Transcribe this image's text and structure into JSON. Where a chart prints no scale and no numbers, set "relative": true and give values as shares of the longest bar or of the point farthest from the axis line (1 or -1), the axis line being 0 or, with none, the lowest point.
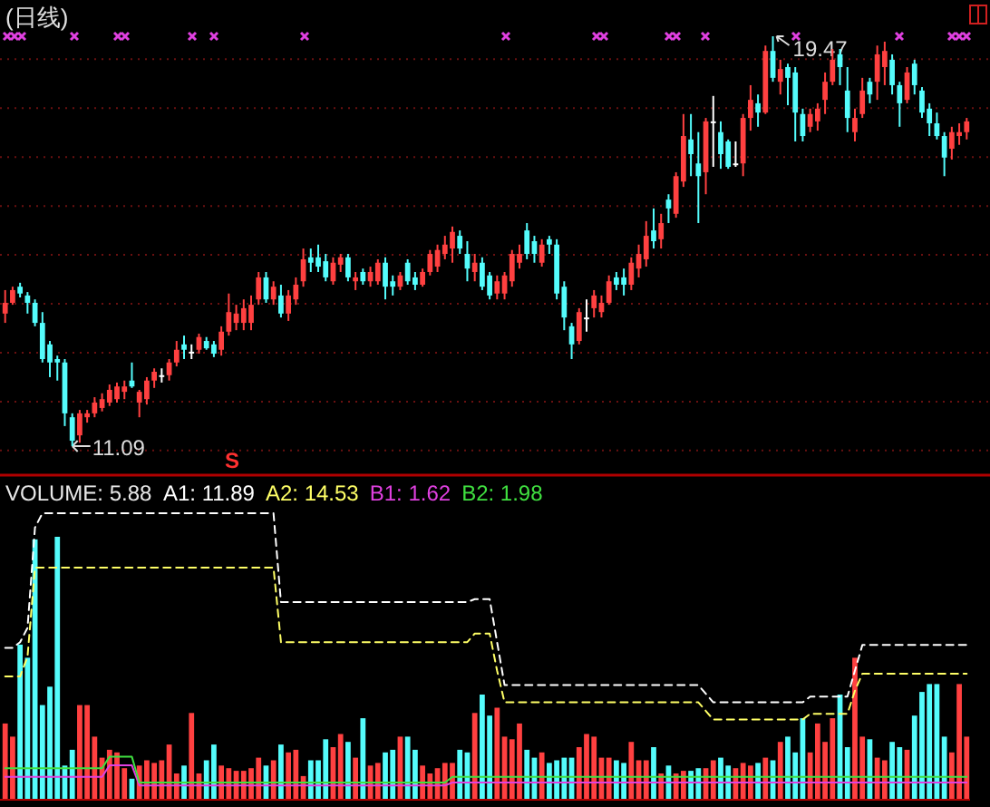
{
  "chart_data": [
    {
      "type": "candlestick",
      "title": "(日线)",
      "grid": true,
      "yticks": [
        {
          "value": 11,
          "label": null
        },
        {
          "value": 12,
          "label": null
        },
        {
          "value": 13,
          "label": null
        },
        {
          "value": 14,
          "label": null
        },
        {
          "value": 15,
          "label": null
        },
        {
          "value": 16,
          "label": null
        },
        {
          "value": 17,
          "label": null
        },
        {
          "value": 18,
          "label": null
        },
        {
          "value": 19,
          "label": null
        }
      ],
      "categories": [
        null,
        null,
        null,
        null,
        null,
        null,
        null,
        null,
        null,
        null,
        null,
        null,
        null,
        null,
        null,
        null,
        null,
        null,
        null,
        null,
        null,
        null,
        null,
        null,
        null,
        null,
        null,
        null,
        null,
        null,
        null,
        null,
        null,
        null,
        null,
        null,
        null,
        null,
        null,
        null,
        null,
        null,
        null,
        null,
        null,
        null,
        null,
        null,
        null,
        null,
        null,
        null,
        null,
        null,
        null,
        null,
        null,
        null,
        null,
        null,
        null,
        null,
        null,
        null,
        null,
        null,
        null,
        null,
        null,
        null,
        null,
        null,
        null,
        null,
        null,
        null,
        null,
        null,
        null,
        null,
        null,
        null,
        null,
        null,
        null,
        null,
        null,
        null,
        null,
        null,
        null,
        null,
        null,
        null,
        null,
        null,
        null,
        null,
        null,
        null,
        null,
        null,
        null,
        null,
        null,
        null,
        null,
        null,
        null,
        null,
        null,
        null,
        null,
        null,
        null,
        null,
        null,
        null,
        null,
        null,
        null,
        null,
        null,
        null,
        null,
        null,
        null,
        null,
        null,
        null
      ],
      "ohlc": [
        [
          13.8,
          14.28,
          13.61,
          14.02
        ],
        [
          14.02,
          14.35,
          13.98,
          14.28
        ],
        [
          14.35,
          14.43,
          14.13,
          14.21
        ],
        [
          14.17,
          14.24,
          13.8,
          14.02
        ],
        [
          14.02,
          14.09,
          13.54,
          13.61
        ],
        [
          13.61,
          13.83,
          12.8,
          12.87
        ],
        [
          13.17,
          13.24,
          12.5,
          12.8
        ],
        [
          12.87,
          12.94,
          12.43,
          12.8
        ],
        [
          12.8,
          12.87,
          11.5,
          11.76
        ],
        [
          11.68,
          11.76,
          11.09,
          11.2
        ],
        [
          11.31,
          11.83,
          11.16,
          11.76
        ],
        [
          11.68,
          11.83,
          11.57,
          11.76
        ],
        [
          11.76,
          12.09,
          11.68,
          11.98
        ],
        [
          11.87,
          12.17,
          11.8,
          12.05
        ],
        [
          11.98,
          12.35,
          11.91,
          12.24
        ],
        [
          12.05,
          12.39,
          11.98,
          12.31
        ],
        [
          12.2,
          12.43,
          12.05,
          12.31
        ],
        [
          12.43,
          12.8,
          12.28,
          12.31
        ],
        [
          11.98,
          12.24,
          11.68,
          12.2
        ],
        [
          12.05,
          12.5,
          11.94,
          12.43
        ],
        [
          12.43,
          12.68,
          12.28,
          12.61
        ],
        [
          12.54,
          12.68,
          12.39,
          12.54
        ],
        [
          12.54,
          12.87,
          12.43,
          12.8
        ],
        [
          12.8,
          13.24,
          12.72,
          13.06
        ],
        [
          13.17,
          13.35,
          12.87,
          13.06
        ],
        [
          13.02,
          13.17,
          12.87,
          13.02
        ],
        [
          13.06,
          13.39,
          12.98,
          13.32
        ],
        [
          13.24,
          13.32,
          13.06,
          13.09
        ],
        [
          13.17,
          13.24,
          12.91,
          12.98
        ],
        [
          13.06,
          13.54,
          12.94,
          13.43
        ],
        [
          13.43,
          14.21,
          13.35,
          13.83
        ],
        [
          13.61,
          13.98,
          13.46,
          13.8
        ],
        [
          13.61,
          14.09,
          13.46,
          13.91
        ],
        [
          13.61,
          14.17,
          13.46,
          13.98
        ],
        [
          14.09,
          14.65,
          13.98,
          14.54
        ],
        [
          14.54,
          14.65,
          14.02,
          14.09
        ],
        [
          14.09,
          14.46,
          13.98,
          14.35
        ],
        [
          14.17,
          14.39,
          13.72,
          13.8
        ],
        [
          13.8,
          14.28,
          13.65,
          14.17
        ],
        [
          14.09,
          14.54,
          13.98,
          14.39
        ],
        [
          14.46,
          15.13,
          14.35,
          14.91
        ],
        [
          14.95,
          15.13,
          14.65,
          14.84
        ],
        [
          14.95,
          15.21,
          14.65,
          14.76
        ],
        [
          14.87,
          15.02,
          14.46,
          14.54
        ],
        [
          14.46,
          14.95,
          14.39,
          14.84
        ],
        [
          14.8,
          15.02,
          14.65,
          14.95
        ],
        [
          14.95,
          15.02,
          14.46,
          14.54
        ],
        [
          14.46,
          14.65,
          14.28,
          14.54
        ],
        [
          14.65,
          14.72,
          14.39,
          14.46
        ],
        [
          14.46,
          14.76,
          14.35,
          14.65
        ],
        [
          14.46,
          14.91,
          14.39,
          14.84
        ],
        [
          14.84,
          14.95,
          14.09,
          14.35
        ],
        [
          14.46,
          14.58,
          14.17,
          14.35
        ],
        [
          14.35,
          14.65,
          14.28,
          14.58
        ],
        [
          14.84,
          14.91,
          14.39,
          14.46
        ],
        [
          14.54,
          14.65,
          14.28,
          14.39
        ],
        [
          14.39,
          14.72,
          14.35,
          14.65
        ],
        [
          14.65,
          15.1,
          14.58,
          15.02
        ],
        [
          14.76,
          15.21,
          14.65,
          15.1
        ],
        [
          15.02,
          15.39,
          14.91,
          15.21
        ],
        [
          15.13,
          15.58,
          14.84,
          15.47
        ],
        [
          15.39,
          15.5,
          15.02,
          15.13
        ],
        [
          15.02,
          15.28,
          14.46,
          14.72
        ],
        [
          14.65,
          15.02,
          14.46,
          14.84
        ],
        [
          14.84,
          14.95,
          14.28,
          14.35
        ],
        [
          14.58,
          14.65,
          14.09,
          14.17
        ],
        [
          14.21,
          14.58,
          14.09,
          14.46
        ],
        [
          14.21,
          14.65,
          14.09,
          14.58
        ],
        [
          14.46,
          15.1,
          14.35,
          15.02
        ],
        [
          14.84,
          15.21,
          14.72,
          15.02
        ],
        [
          15.5,
          15.65,
          14.91,
          15.02
        ],
        [
          15.28,
          15.39,
          14.84,
          15.02
        ],
        [
          14.84,
          15.32,
          14.76,
          15.21
        ],
        [
          15.32,
          15.39,
          15.02,
          15.21
        ],
        [
          15.21,
          15.32,
          14.09,
          14.21
        ],
        [
          14.35,
          14.46,
          13.46,
          13.72
        ],
        [
          13.54,
          13.61,
          12.87,
          13.17
        ],
        [
          13.24,
          13.91,
          13.17,
          13.83
        ],
        [
          13.72,
          14.09,
          13.43,
          13.72
        ],
        [
          13.91,
          14.28,
          13.72,
          14.17
        ],
        [
          13.83,
          14.17,
          13.72,
          14.02
        ],
        [
          14.02,
          14.58,
          13.98,
          14.46
        ],
        [
          14.54,
          14.65,
          14.28,
          14.39
        ],
        [
          14.54,
          14.72,
          14.17,
          14.39
        ],
        [
          14.39,
          14.95,
          14.28,
          14.84
        ],
        [
          14.72,
          15.21,
          14.54,
          15.02
        ],
        [
          14.91,
          15.69,
          14.76,
          15.39
        ],
        [
          15.5,
          15.95,
          15.13,
          15.28
        ],
        [
          15.32,
          15.84,
          15.13,
          15.65
        ],
        [
          16.13,
          16.24,
          15.65,
          15.95
        ],
        [
          15.84,
          16.69,
          15.76,
          16.61
        ],
        [
          16.5,
          17.88,
          16.39,
          17.43
        ],
        [
          17.36,
          17.88,
          16.61,
          17.06
        ],
        [
          16.87,
          17.51,
          15.65,
          16.61
        ],
        [
          16.69,
          17.8,
          16.24,
          17.73
        ],
        [
          17.73,
          18.25,
          16.8,
          17.73
        ],
        [
          17.51,
          17.73,
          16.76,
          17.06
        ],
        [
          17.32,
          17.36,
          16.76,
          16.8
        ],
        [
          16.87,
          17.32,
          16.8,
          16.87
        ],
        [
          16.87,
          17.88,
          16.61,
          17.8
        ],
        [
          17.8,
          18.47,
          17.54,
          18.17
        ],
        [
          18.1,
          18.28,
          17.62,
          17.91
        ],
        [
          17.91,
          19.28,
          17.88,
          19.17
        ],
        [
          19.17,
          19.47,
          18.54,
          18.62
        ],
        [
          18.54,
          18.99,
          18.28,
          18.8
        ],
        [
          18.84,
          18.91,
          18.06,
          18.62
        ],
        [
          18.73,
          18.84,
          17.32,
          17.91
        ],
        [
          17.88,
          17.99,
          17.32,
          17.43
        ],
        [
          17.62,
          17.99,
          17.51,
          17.88
        ],
        [
          17.73,
          18.1,
          17.54,
          17.99
        ],
        [
          18.17,
          18.73,
          17.88,
          18.54
        ],
        [
          18.54,
          19.21,
          18.47,
          18.99
        ],
        [
          19.1,
          19.21,
          18.47,
          18.84
        ],
        [
          18.36,
          18.84,
          17.51,
          17.8
        ],
        [
          17.51,
          17.99,
          17.32,
          17.8
        ],
        [
          17.88,
          18.62,
          17.8,
          18.36
        ],
        [
          18.54,
          18.62,
          18.1,
          18.28
        ],
        [
          18.54,
          19.28,
          18.17,
          19.1
        ],
        [
          18.84,
          19.36,
          18.47,
          19.17
        ],
        [
          18.99,
          19.1,
          18.28,
          18.47
        ],
        [
          18.47,
          18.54,
          17.62,
          18.1
        ],
        [
          18.17,
          18.84,
          18.1,
          18.73
        ],
        [
          18.91,
          18.99,
          18.28,
          18.47
        ],
        [
          18.36,
          18.43,
          17.8,
          17.91
        ],
        [
          17.99,
          18.1,
          17.43,
          17.69
        ],
        [
          17.69,
          17.91,
          17.36,
          17.43
        ],
        [
          17.43,
          17.51,
          16.61,
          16.99
        ],
        [
          17.17,
          17.62,
          16.95,
          17.51
        ],
        [
          17.43,
          17.69,
          17.25,
          17.51
        ],
        [
          17.51,
          17.8,
          17.36,
          17.73
        ]
      ],
      "colors": [
        "#ff4040",
        "#ff4040",
        "#54fcfc",
        "#54fcfc",
        "#54fcfc",
        "#54fcfc",
        "#54fcfc",
        "#54fcfc",
        "#54fcfc",
        "#54fcfc",
        "#ff4040",
        "#ff4040",
        "#ff4040",
        "#ff4040",
        "#ff4040",
        "#ff4040",
        "#ff4040",
        "#54fcfc",
        "#ff4040",
        "#ff4040",
        "#ff4040",
        "#ffffff",
        "#ff4040",
        "#ff4040",
        "#54fcfc",
        "#ffffff",
        "#ff4040",
        "#54fcfc",
        "#54fcfc",
        "#ff4040",
        "#ff4040",
        "#ff4040",
        "#ff4040",
        "#ff4040",
        "#ff4040",
        "#54fcfc",
        "#ff4040",
        "#54fcfc",
        "#ff4040",
        "#ff4040",
        "#ff4040",
        "#54fcfc",
        "#54fcfc",
        "#54fcfc",
        "#ff4040",
        "#ff4040",
        "#54fcfc",
        "#ff4040",
        "#54fcfc",
        "#ff4040",
        "#ff4040",
        "#54fcfc",
        "#54fcfc",
        "#ff4040",
        "#54fcfc",
        "#54fcfc",
        "#ff4040",
        "#ff4040",
        "#ff4040",
        "#ff4040",
        "#ff4040",
        "#54fcfc",
        "#54fcfc",
        "#ff4040",
        "#54fcfc",
        "#54fcfc",
        "#ff4040",
        "#ff4040",
        "#ff4040",
        "#ff4040",
        "#54fcfc",
        "#54fcfc",
        "#ff4040",
        "#54fcfc",
        "#54fcfc",
        "#54fcfc",
        "#54fcfc",
        "#ff4040",
        "#ffffff",
        "#ff4040",
        "#ff4040",
        "#ff4040",
        "#54fcfc",
        "#54fcfc",
        "#ff4040",
        "#ff4040",
        "#ff4040",
        "#54fcfc",
        "#ff4040",
        "#54fcfc",
        "#ff4040",
        "#ff4040",
        "#54fcfc",
        "#54fcfc",
        "#ff4040",
        "#ffffff",
        "#54fcfc",
        "#54fcfc",
        "#ffffff",
        "#ff4040",
        "#ff4040",
        "#54fcfc",
        "#ff4040",
        "#54fcfc",
        "#ff4040",
        "#54fcfc",
        "#54fcfc",
        "#54fcfc",
        "#ff4040",
        "#ff4040",
        "#ff4040",
        "#ff4040",
        "#54fcfc",
        "#54fcfc",
        "#ff4040",
        "#ff4040",
        "#54fcfc",
        "#ff4040",
        "#ff4040",
        "#54fcfc",
        "#54fcfc",
        "#ff4040",
        "#54fcfc",
        "#54fcfc",
        "#54fcfc",
        "#54fcfc",
        "#54fcfc",
        "#ff4040",
        "#ff4040",
        "#ff4040"
      ],
      "annotations": [
        "11.09",
        "19.47",
        "S"
      ]
    },
    {
      "type": "bar",
      "relative": true,
      "categories": [
        null,
        null,
        null,
        null,
        null,
        null,
        null,
        null,
        null,
        null,
        null,
        null,
        null,
        null,
        null,
        null,
        null,
        null,
        null,
        null,
        null,
        null,
        null,
        null,
        null,
        null,
        null,
        null,
        null,
        null,
        null,
        null,
        null,
        null,
        null,
        null,
        null,
        null,
        null,
        null,
        null,
        null,
        null,
        null,
        null,
        null,
        null,
        null,
        null,
        null,
        null,
        null,
        null,
        null,
        null,
        null,
        null,
        null,
        null,
        null,
        null,
        null,
        null,
        null,
        null,
        null,
        null,
        null,
        null,
        null,
        null,
        null,
        null,
        null,
        null,
        null,
        null,
        null,
        null,
        null,
        null,
        null,
        null,
        null,
        null,
        null,
        null,
        null,
        null,
        null,
        null,
        null,
        null,
        null,
        null,
        null,
        null,
        null,
        null,
        null,
        null,
        null,
        null,
        null,
        null,
        null,
        null,
        null,
        null,
        null,
        null,
        null,
        null,
        null,
        null,
        null,
        null,
        null,
        null,
        null,
        null,
        null,
        null,
        null,
        null,
        null,
        null,
        null,
        null,
        null
      ],
      "annotations": [
        "VOLUME: 5.88"
      ],
      "colors": [
        "#ff4040",
        "#ff4040",
        "#54fcfc",
        "#54fcfc",
        "#54fcfc",
        "#54fcfc",
        "#54fcfc",
        "#54fcfc",
        "#54fcfc",
        "#54fcfc",
        "#ff4040",
        "#ff4040",
        "#ff4040",
        "#ff4040",
        "#ff4040",
        "#ff4040",
        "#ff4040",
        "#54fcfc",
        "#ff4040",
        "#ff4040",
        "#ff4040",
        "#ff4040",
        "#ff4040",
        "#ff4040",
        "#54fcfc",
        "#ff4040",
        "#ff4040",
        "#54fcfc",
        "#54fcfc",
        "#ff4040",
        "#ff4040",
        "#ff4040",
        "#ff4040",
        "#ff4040",
        "#ff4040",
        "#54fcfc",
        "#ff4040",
        "#54fcfc",
        "#ff4040",
        "#ff4040",
        "#ff4040",
        "#54fcfc",
        "#54fcfc",
        "#54fcfc",
        "#ff4040",
        "#ff4040",
        "#54fcfc",
        "#ff4040",
        "#54fcfc",
        "#ff4040",
        "#ff4040",
        "#54fcfc",
        "#54fcfc",
        "#ff4040",
        "#54fcfc",
        "#54fcfc",
        "#ff4040",
        "#ff4040",
        "#ff4040",
        "#ff4040",
        "#ff4040",
        "#54fcfc",
        "#54fcfc",
        "#ff4040",
        "#54fcfc",
        "#54fcfc",
        "#ff4040",
        "#ff4040",
        "#ff4040",
        "#ff4040",
        "#54fcfc",
        "#54fcfc",
        "#ff4040",
        "#54fcfc",
        "#54fcfc",
        "#54fcfc",
        "#54fcfc",
        "#ff4040",
        "#ff4040",
        "#ff4040",
        "#ff4040",
        "#ff4040",
        "#54fcfc",
        "#54fcfc",
        "#ff4040",
        "#ff4040",
        "#ff4040",
        "#54fcfc",
        "#ff4040",
        "#54fcfc",
        "#ff4040",
        "#ff4040",
        "#54fcfc",
        "#54fcfc",
        "#ff4040",
        "#ff4040",
        "#54fcfc",
        "#54fcfc",
        "#ff4040",
        "#ff4040",
        "#ff4040",
        "#54fcfc",
        "#ff4040",
        "#54fcfc",
        "#ff4040",
        "#54fcfc",
        "#54fcfc",
        "#54fcfc",
        "#ff4040",
        "#ff4040",
        "#ff4040",
        "#ff4040",
        "#54fcfc",
        "#54fcfc",
        "#ff4040",
        "#ff4040",
        "#54fcfc",
        "#ff4040",
        "#ff4040",
        "#54fcfc",
        "#54fcfc",
        "#ff4040",
        "#54fcfc",
        "#54fcfc",
        "#54fcfc",
        "#54fcfc",
        "#54fcfc",
        "#ff4040",
        "#ff4040",
        "#ff4040"
      ],
      "values": [
        0.29,
        0.24,
        0.59,
        0.54,
        0.99,
        0.36,
        0.43,
        1,
        0.13,
        0.19,
        0.36,
        0.36,
        0.24,
        0.16,
        0.19,
        0.18,
        0.12,
        0.08,
        0.13,
        0.15,
        0.14,
        0.15,
        0.21,
        0.1,
        0.13,
        0.33,
        0.1,
        0.15,
        0.21,
        0.13,
        0.12,
        0.11,
        0.11,
        0.12,
        0.16,
        0.13,
        0.15,
        0.21,
        0.18,
        0.19,
        0.09,
        0.15,
        0.15,
        0.23,
        0.2,
        0.25,
        0.22,
        0.16,
        0.31,
        0.13,
        0.14,
        0.18,
        0.19,
        0.24,
        0.24,
        0.19,
        0.13,
        0.1,
        0.12,
        0.14,
        0.14,
        0.19,
        0.18,
        0.33,
        0.4,
        0.32,
        0.35,
        0.24,
        0.23,
        0.29,
        0.19,
        0.16,
        0.18,
        0.14,
        0.15,
        0.16,
        0.16,
        0.2,
        0.25,
        0.24,
        0.16,
        0.16,
        0.15,
        0.14,
        0.22,
        0.15,
        0.15,
        0.2,
        0.1,
        0.13,
        0.1,
        0.11,
        0.11,
        0.12,
        0.12,
        0.15,
        0.16,
        0.13,
        0.12,
        0.14,
        0.13,
        0.14,
        0.16,
        0.15,
        0.22,
        0.24,
        0.18,
        0.31,
        0.18,
        0.29,
        0.22,
        0.31,
        0.4,
        0.2,
        0.54,
        0.24,
        0.23,
        0.16,
        0.15,
        0.22,
        0.2,
        0.19,
        0.32,
        0.41,
        0.44,
        0.44,
        0.24,
        0.18,
        0.44,
        0.24
      ]
    },
    {
      "type": "line",
      "relative": true,
      "categories": [
        null,
        null,
        null,
        null,
        null,
        null,
        null,
        null,
        null,
        null,
        null,
        null,
        null,
        null,
        null,
        null,
        null,
        null,
        null,
        null,
        null,
        null,
        null,
        null,
        null,
        null,
        null,
        null,
        null,
        null,
        null,
        null,
        null,
        null,
        null,
        null,
        null,
        null,
        null,
        null,
        null,
        null,
        null,
        null,
        null,
        null,
        null,
        null,
        null,
        null,
        null,
        null,
        null,
        null,
        null,
        null,
        null,
        null,
        null,
        null,
        null,
        null,
        null,
        null,
        null,
        null,
        null,
        null,
        null,
        null,
        null,
        null,
        null,
        null,
        null,
        null,
        null,
        null,
        null,
        null,
        null,
        null,
        null,
        null,
        null,
        null,
        null,
        null,
        null,
        null,
        null,
        null,
        null,
        null,
        null,
        null,
        null,
        null,
        null,
        null,
        null,
        null,
        null,
        null,
        null,
        null,
        null,
        null,
        null,
        null,
        null,
        null,
        null,
        null,
        null,
        null,
        null,
        null,
        null,
        null,
        null,
        null,
        null,
        null,
        null,
        null,
        null,
        null,
        null,
        null
      ],
      "series": [
        {
          "name": "A1: 11.89",
          "color": "#ffffff",
          "line_style": "dashed",
          "values": [
            0.53,
            0.53,
            0.55,
            0.6,
            0.95,
            1,
            1,
            1,
            1,
            1,
            1,
            1,
            1,
            1,
            1,
            1,
            1,
            1,
            1,
            1,
            1,
            1,
            1,
            1,
            1,
            1,
            1,
            1,
            1,
            1,
            1,
            1,
            1,
            1,
            1,
            1,
            1,
            0.69,
            0.69,
            0.69,
            0.69,
            0.69,
            0.69,
            0.69,
            0.69,
            0.69,
            0.69,
            0.69,
            0.69,
            0.69,
            0.69,
            0.69,
            0.69,
            0.69,
            0.69,
            0.69,
            0.69,
            0.69,
            0.69,
            0.69,
            0.69,
            0.69,
            0.69,
            0.7,
            0.7,
            0.7,
            0.55,
            0.4,
            0.4,
            0.4,
            0.4,
            0.4,
            0.4,
            0.4,
            0.4,
            0.4,
            0.4,
            0.4,
            0.4,
            0.4,
            0.4,
            0.4,
            0.4,
            0.4,
            0.4,
            0.4,
            0.4,
            0.4,
            0.4,
            0.4,
            0.4,
            0.4,
            0.4,
            0.4,
            0.37,
            0.34,
            0.34,
            0.34,
            0.34,
            0.34,
            0.34,
            0.34,
            0.34,
            0.34,
            0.34,
            0.34,
            0.34,
            0.34,
            0.36,
            0.36,
            0.36,
            0.36,
            0.36,
            0.36,
            0.45,
            0.54,
            0.54,
            0.54,
            0.54,
            0.54,
            0.54,
            0.54,
            0.54,
            0.54,
            0.54,
            0.54,
            0.54,
            0.54,
            0.54,
            0.54
          ]
        },
        {
          "name": "A2: 14.53",
          "color": "#ffff66",
          "line_style": "dashed",
          "values": [
            0.43,
            0.43,
            0.43,
            0.5,
            0.81,
            0.81,
            0.81,
            0.81,
            0.81,
            0.81,
            0.81,
            0.81,
            0.81,
            0.81,
            0.81,
            0.81,
            0.81,
            0.81,
            0.81,
            0.81,
            0.81,
            0.81,
            0.81,
            0.81,
            0.81,
            0.81,
            0.81,
            0.81,
            0.81,
            0.81,
            0.81,
            0.81,
            0.81,
            0.81,
            0.81,
            0.81,
            0.81,
            0.55,
            0.55,
            0.55,
            0.55,
            0.55,
            0.55,
            0.55,
            0.55,
            0.55,
            0.55,
            0.55,
            0.55,
            0.55,
            0.55,
            0.55,
            0.55,
            0.55,
            0.55,
            0.55,
            0.55,
            0.55,
            0.55,
            0.55,
            0.55,
            0.55,
            0.55,
            0.58,
            0.58,
            0.58,
            0.45,
            0.34,
            0.34,
            0.34,
            0.34,
            0.34,
            0.34,
            0.34,
            0.34,
            0.34,
            0.34,
            0.34,
            0.34,
            0.34,
            0.34,
            0.34,
            0.34,
            0.34,
            0.34,
            0.34,
            0.34,
            0.34,
            0.34,
            0.34,
            0.34,
            0.34,
            0.34,
            0.34,
            0.31,
            0.28,
            0.28,
            0.28,
            0.28,
            0.28,
            0.28,
            0.28,
            0.28,
            0.28,
            0.28,
            0.28,
            0.28,
            0.28,
            0.3,
            0.3,
            0.3,
            0.3,
            0.3,
            0.3,
            0.38,
            0.44,
            0.44,
            0.44,
            0.44,
            0.44,
            0.44,
            0.44,
            0.44,
            0.44,
            0.44,
            0.44,
            0.44,
            0.44,
            0.44,
            0.44
          ]
        },
        {
          "name": "B1: 1.62",
          "color": "#e040e0",
          "line_style": "solid",
          "values": [
            0.08,
            0.08,
            0.08,
            0.08,
            0.08,
            0.08,
            0.08,
            0.08,
            0.08,
            0.08,
            0.08,
            0.08,
            0.08,
            0.08,
            0.12,
            0.12,
            0.12,
            0.12,
            0.05,
            0.05,
            0.05,
            0.05,
            0.05,
            0.05,
            0.05,
            0.05,
            0.05,
            0.05,
            0.05,
            0.05,
            0.05,
            0.05,
            0.05,
            0.05,
            0.05,
            0.05,
            0.05,
            0.05,
            0.05,
            0.05,
            0.05,
            0.05,
            0.05,
            0.05,
            0.05,
            0.05,
            0.05,
            0.05,
            0.05,
            0.05,
            0.05,
            0.05,
            0.05,
            0.05,
            0.05,
            0.05,
            0.05,
            0.05,
            0.05,
            0.05,
            0.06,
            0.06,
            0.06,
            0.06,
            0.06,
            0.06,
            0.06,
            0.06,
            0.06,
            0.06,
            0.06,
            0.06,
            0.06,
            0.06,
            0.06,
            0.06,
            0.06,
            0.06,
            0.06,
            0.06,
            0.06,
            0.06,
            0.06,
            0.06,
            0.06,
            0.06,
            0.06,
            0.06,
            0.06,
            0.06,
            0.06,
            0.06,
            0.06,
            0.06,
            0.06,
            0.06,
            0.06,
            0.06,
            0.06,
            0.06,
            0.06,
            0.06,
            0.06,
            0.06,
            0.06,
            0.06,
            0.06,
            0.06,
            0.06,
            0.06,
            0.06,
            0.06,
            0.06,
            0.06,
            0.06,
            0.06,
            0.06,
            0.06,
            0.06,
            0.06,
            0.06,
            0.06,
            0.06,
            0.06,
            0.06,
            0.06,
            0.06,
            0.06,
            0.06,
            0.06
          ]
        },
        {
          "name": "B2: 1.98",
          "color": "#40e040",
          "line_style": "solid",
          "values": [
            0.11,
            0.11,
            0.11,
            0.11,
            0.11,
            0.11,
            0.11,
            0.11,
            0.11,
            0.11,
            0.11,
            0.11,
            0.11,
            0.11,
            0.15,
            0.15,
            0.15,
            0.15,
            0.06,
            0.06,
            0.06,
            0.06,
            0.06,
            0.06,
            0.06,
            0.06,
            0.06,
            0.06,
            0.06,
            0.06,
            0.06,
            0.06,
            0.06,
            0.06,
            0.06,
            0.06,
            0.06,
            0.06,
            0.06,
            0.06,
            0.06,
            0.06,
            0.06,
            0.06,
            0.06,
            0.06,
            0.06,
            0.06,
            0.06,
            0.06,
            0.06,
            0.06,
            0.06,
            0.06,
            0.06,
            0.06,
            0.06,
            0.06,
            0.06,
            0.06,
            0.08,
            0.08,
            0.08,
            0.08,
            0.08,
            0.08,
            0.08,
            0.08,
            0.08,
            0.08,
            0.08,
            0.08,
            0.08,
            0.08,
            0.08,
            0.08,
            0.08,
            0.08,
            0.08,
            0.08,
            0.08,
            0.08,
            0.08,
            0.08,
            0.08,
            0.08,
            0.08,
            0.08,
            0.08,
            0.08,
            0.08,
            0.08,
            0.08,
            0.08,
            0.08,
            0.08,
            0.08,
            0.08,
            0.08,
            0.08,
            0.08,
            0.08,
            0.08,
            0.08,
            0.08,
            0.08,
            0.08,
            0.08,
            0.08,
            0.08,
            0.08,
            0.08,
            0.08,
            0.08,
            0.08,
            0.08,
            0.08,
            0.08,
            0.08,
            0.08,
            0.08,
            0.08,
            0.08,
            0.08,
            0.08,
            0.08,
            0.08,
            0.08,
            0.08,
            0.08
          ]
        }
      ]
    }
  ]
}
